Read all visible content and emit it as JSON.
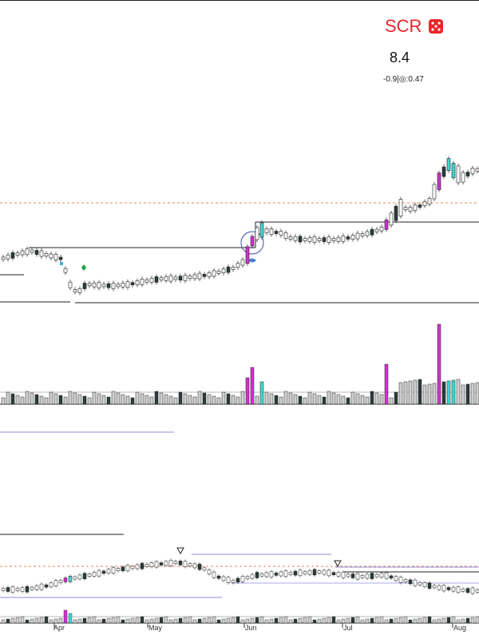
{
  "header": {
    "symbol": "SCR",
    "price": "8.4",
    "change": "-0.9",
    "sep": "|",
    "ratio": ":0.47"
  },
  "colors": {
    "up_hollow": "#ffffff",
    "down_fill": "#2b3a3a",
    "highlight_magenta": "#d62dd6",
    "highlight_cyan": "#3fd6cf",
    "level_line": "#222222",
    "dashed_ref": "#e8845a",
    "overview_line": "#8d8fd8",
    "signal_green": "#1aa33a",
    "signal_blue": "#4a7fd6",
    "logo_red": "#e8262c"
  },
  "chart_data": [
    {
      "type": "candlestick",
      "panel": "price",
      "x_axis": "date",
      "series": [
        {
          "name": "",
          "ohlc_summary": "Mar–Aug daily candles: consolidation near low, breakout in late May, rally into Aug"
        }
      ],
      "levels": [
        "resistance",
        "support",
        "breakout"
      ]
    },
    {
      "type": "bar",
      "panel": "volume",
      "note": "volume bars, magenta/cyan mark heavy-volume days"
    },
    {
      "type": "candlestick",
      "panel": "overview",
      "tick_labels": [
        "Apr",
        "May",
        "Jun",
        "Jul",
        "Aug"
      ]
    }
  ]
}
